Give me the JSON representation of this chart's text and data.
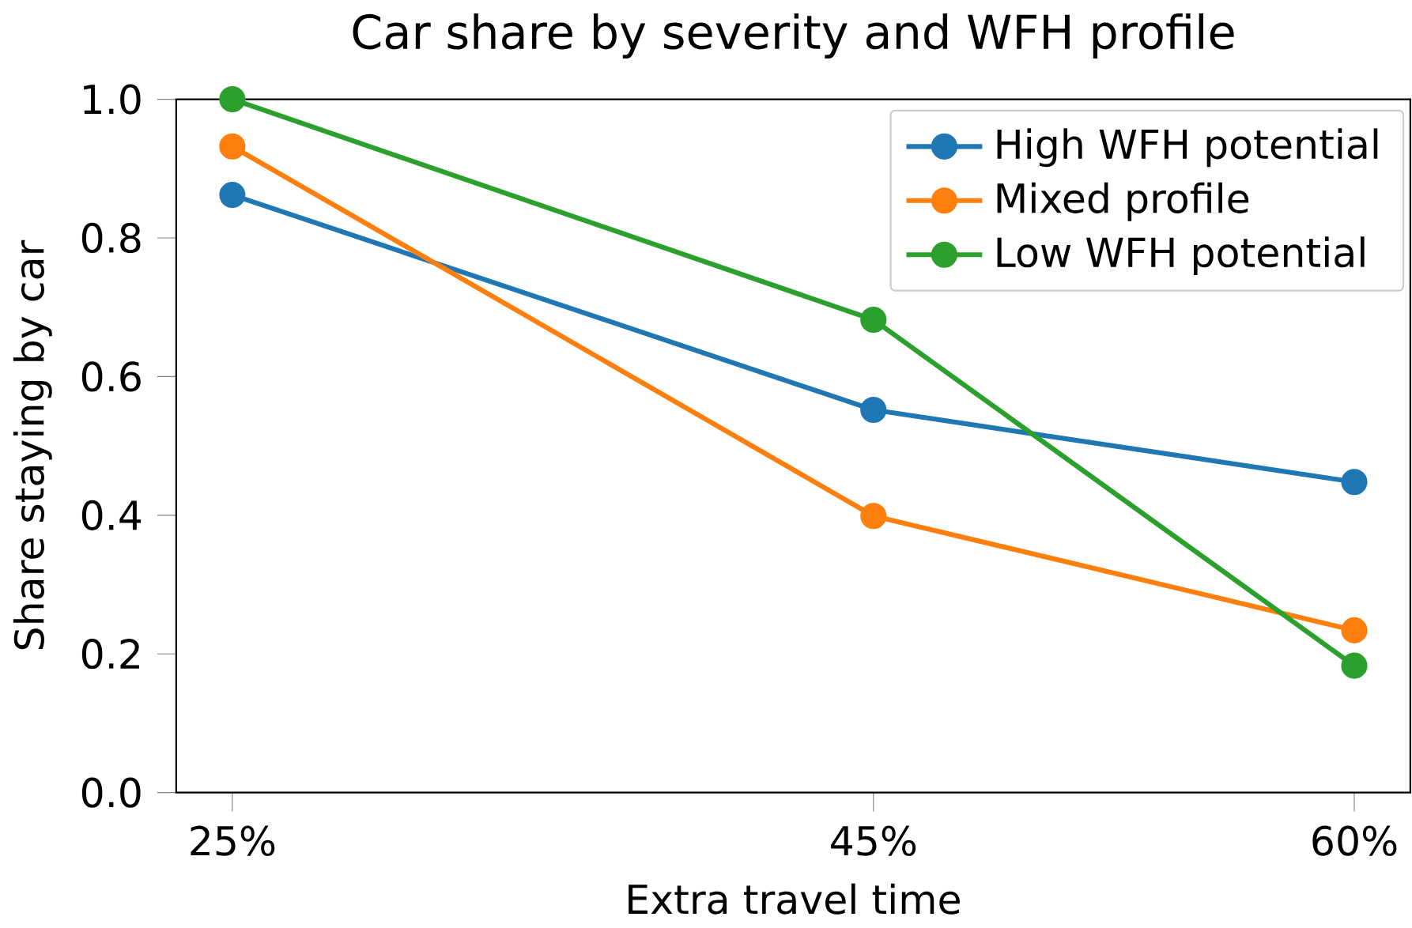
{
  "chart_data": {
    "type": "line",
    "title": "Car share by severity and WFH profile",
    "xlabel": "Extra travel time",
    "ylabel": "Share staying by car",
    "x": [
      25,
      45,
      60
    ],
    "series": [
      {
        "name": "High WFH potential",
        "color": "#1f77b4",
        "values": [
          0.862,
          0.552,
          0.448
        ]
      },
      {
        "name": "Mixed profile",
        "color": "#ff7f0e",
        "values": [
          0.932,
          0.399,
          0.234
        ]
      },
      {
        "name": "Low WFH potential",
        "color": "#2ca02c",
        "values": [
          1.0,
          0.682,
          0.183
        ]
      }
    ],
    "xlim": [
      23.25,
      61.75
    ],
    "xticks": [
      {
        "value": 25,
        "label": "25%"
      },
      {
        "value": 45,
        "label": "45%"
      },
      {
        "value": 60,
        "label": "60%"
      }
    ],
    "ylim": [
      0,
      1
    ],
    "yticks": [
      {
        "value": 0,
        "label": "0.0"
      },
      {
        "value": 0.2,
        "label": "0.2"
      },
      {
        "value": 0.4,
        "label": "0.4"
      },
      {
        "value": 0.6,
        "label": "0.6"
      },
      {
        "value": 0.8,
        "label": "0.8"
      },
      {
        "value": 1,
        "label": "1.0"
      }
    ],
    "legend": "top right",
    "marker": "circle",
    "line_style": "solid",
    "grid": false
  }
}
